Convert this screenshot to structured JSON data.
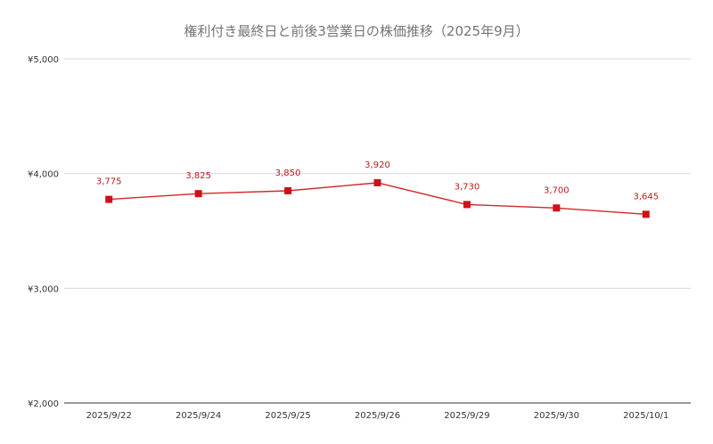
{
  "chart_data": {
    "type": "line",
    "title": "権利付き最終日と前後3営業日の株価推移（2025年9月）",
    "xlabel": "",
    "ylabel": "",
    "categories": [
      "2025/9/22",
      "2025/9/24",
      "2025/9/25",
      "2025/9/26",
      "2025/9/29",
      "2025/9/30",
      "2025/10/1"
    ],
    "series": [
      {
        "values": [
          3775,
          3825,
          3850,
          3920,
          3730,
          3700,
          3645
        ],
        "data_labels": [
          "3,775",
          "3,825",
          "3,850",
          "3,920",
          "3,730",
          "3,700",
          "3,645"
        ]
      }
    ],
    "ylim": [
      2000,
      5000
    ],
    "yticks": [
      2000,
      3000,
      4000,
      5000
    ],
    "ytick_labels": [
      "¥2,000",
      "¥3,000",
      "¥4,000",
      "¥5,000"
    ],
    "grid": true,
    "legend": "none",
    "colors": {
      "line": "#d0272b",
      "marker": "#d0101a",
      "data_label": "#b71c1c",
      "grid": "#d9d9d9",
      "title": "#757575"
    }
  }
}
